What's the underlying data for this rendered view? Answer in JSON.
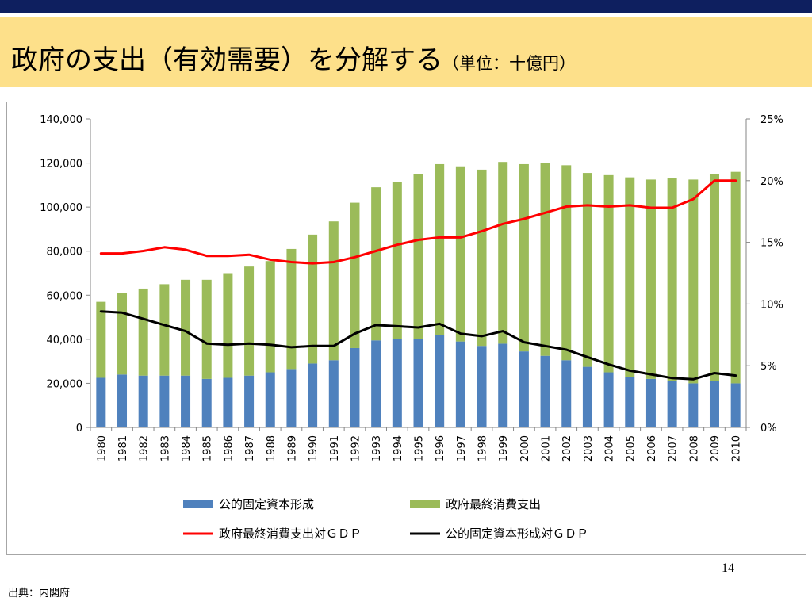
{
  "slide": {
    "title": "政府の支出（有効需要）を分解する",
    "title_unit": "（単位：十億円）",
    "page_number": "14",
    "source": "出典：内閣府"
  },
  "colors": {
    "header_bar": "#0e1f5f",
    "title_band": "#fde08a",
    "public_investment": "#4f81bd",
    "consumption": "#9bbb59",
    "consumption_ratio_line": "#ff0000",
    "investment_ratio_line": "#000000"
  },
  "chart_data": {
    "type": "bar",
    "stacked": true,
    "categories": [
      "1980",
      "1981",
      "1982",
      "1983",
      "1984",
      "1985",
      "1986",
      "1987",
      "1988",
      "1989",
      "1990",
      "1991",
      "1992",
      "1993",
      "1994",
      "1995",
      "1996",
      "1997",
      "1998",
      "1999",
      "2000",
      "2001",
      "2002",
      "2003",
      "2004",
      "2005",
      "2006",
      "2007",
      "2008",
      "2009",
      "2010"
    ],
    "series": [
      {
        "name": "公的固定資本形成",
        "type": "bar",
        "axis": "left",
        "values": [
          22500,
          24000,
          23500,
          23500,
          23500,
          22000,
          22500,
          23500,
          25000,
          26500,
          29000,
          30500,
          36000,
          39500,
          40000,
          40000,
          42000,
          39000,
          37000,
          38000,
          34500,
          32500,
          30500,
          27500,
          25000,
          23000,
          22000,
          21000,
          20000,
          21000,
          20000
        ]
      },
      {
        "name": "政府最終消費支出",
        "type": "bar",
        "axis": "left",
        "values": [
          34500,
          37000,
          39500,
          41500,
          43500,
          45000,
          47500,
          49500,
          50500,
          54500,
          58500,
          63000,
          66000,
          69500,
          71500,
          75000,
          77500,
          79500,
          80000,
          82500,
          85000,
          87500,
          88500,
          88000,
          89500,
          90500,
          90500,
          92000,
          92500,
          94000,
          96000
        ]
      },
      {
        "name": "政府最終消費支出対ＧＤＰ",
        "type": "line",
        "axis": "right",
        "values": [
          14.1,
          14.1,
          14.3,
          14.6,
          14.4,
          13.9,
          13.9,
          14.0,
          13.6,
          13.4,
          13.3,
          13.4,
          13.8,
          14.3,
          14.8,
          15.2,
          15.4,
          15.4,
          15.9,
          16.5,
          16.9,
          17.4,
          17.9,
          18.0,
          17.9,
          18.0,
          17.8,
          17.8,
          18.5,
          20.0,
          20.0
        ]
      },
      {
        "name": "公的固定資本形成対ＧＤＰ",
        "type": "line",
        "axis": "right",
        "values": [
          9.4,
          9.3,
          8.8,
          8.3,
          7.8,
          6.8,
          6.7,
          6.8,
          6.7,
          6.5,
          6.6,
          6.6,
          7.6,
          8.3,
          8.2,
          8.1,
          8.4,
          7.6,
          7.4,
          7.8,
          6.9,
          6.6,
          6.3,
          5.7,
          5.1,
          4.6,
          4.3,
          4.0,
          3.9,
          4.4,
          4.2
        ]
      }
    ],
    "y_left": {
      "range": [
        0,
        140000
      ],
      "ticks": [
        "0",
        "20,000",
        "40,000",
        "60,000",
        "80,000",
        "100,000",
        "120,000",
        "140,000"
      ]
    },
    "y_right": {
      "range": [
        0,
        25
      ],
      "ticks": [
        "0%",
        "5%",
        "10%",
        "15%",
        "20%",
        "25%"
      ]
    },
    "grid": false,
    "legend_position": "bottom"
  }
}
